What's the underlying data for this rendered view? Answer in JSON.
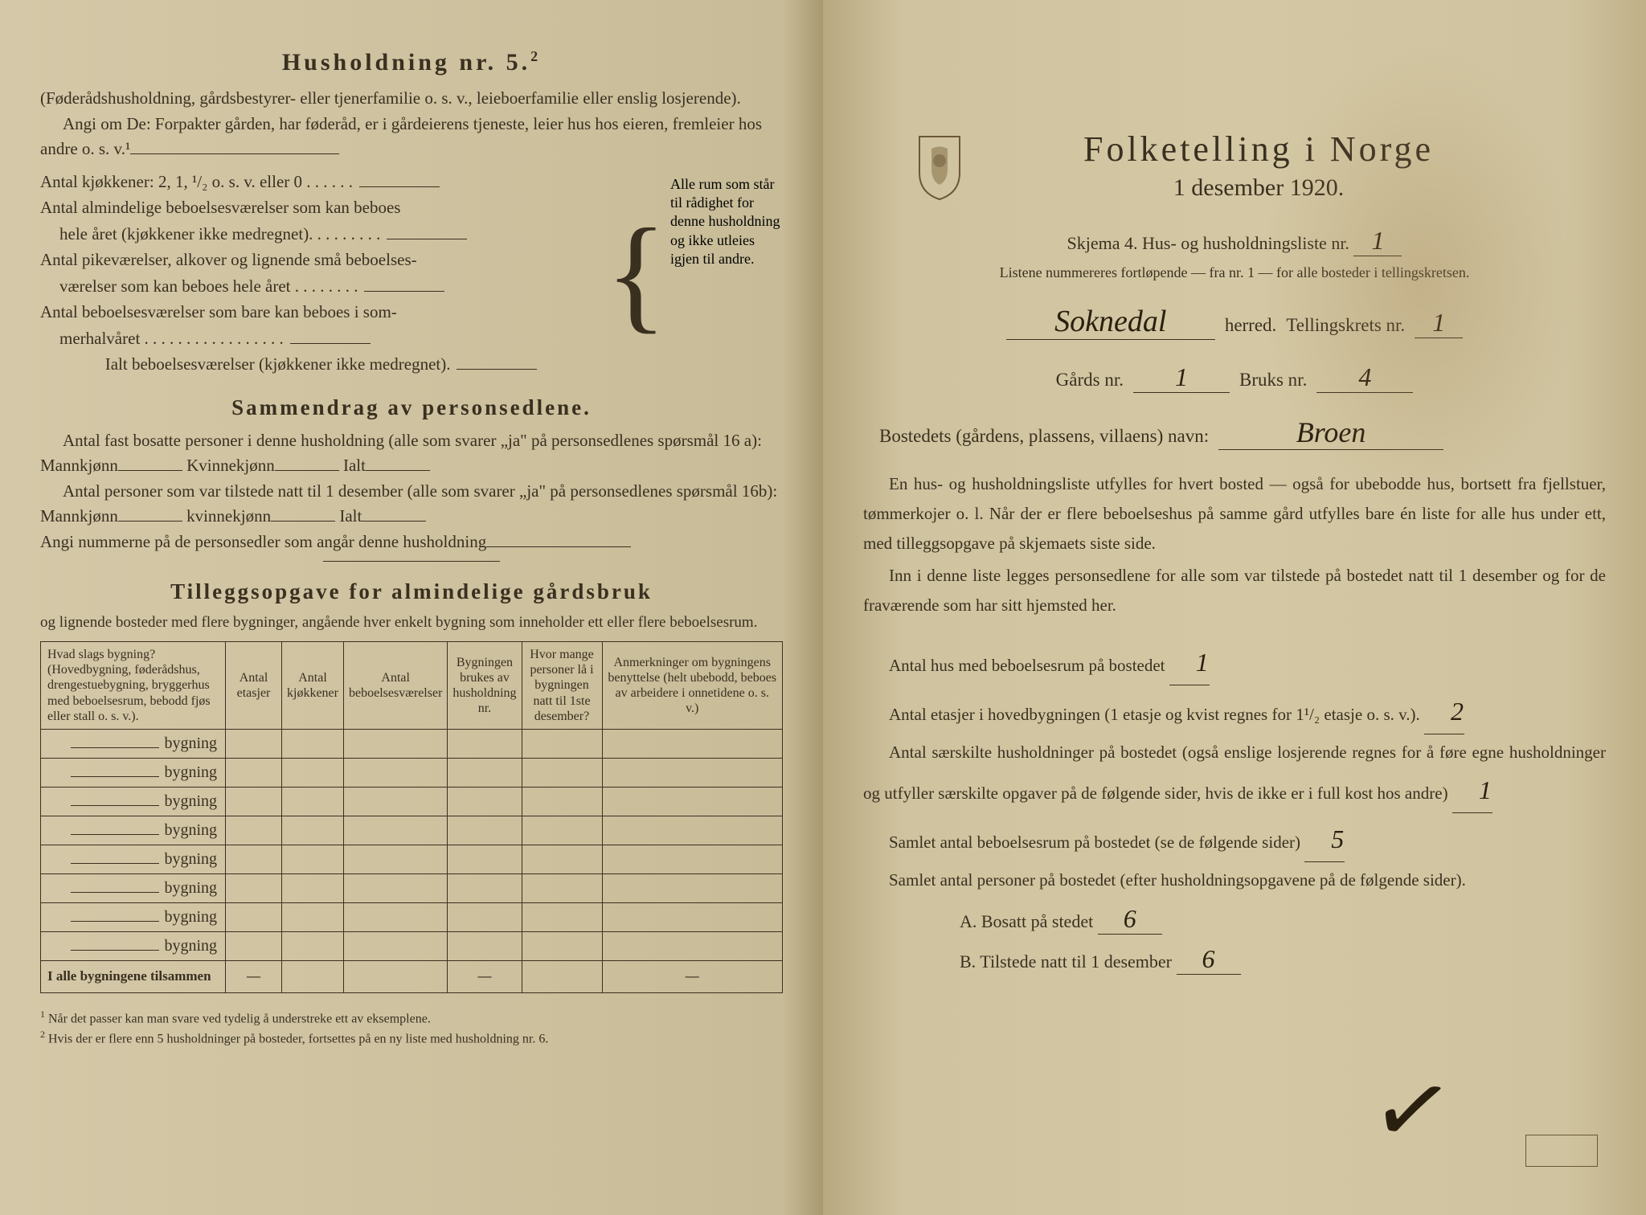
{
  "left": {
    "heading": "Husholdning nr. 5.",
    "heading_sup": "2",
    "intro1": "(Føderådshusholdning, gårdsbestyrer- eller tjenerfamilie o. s. v., leieboerfamilie eller enslig losjerende).",
    "intro2": "Angi om De: Forpakter gården, har føderåd, er i gårdeierens tjeneste, leier hus hos eieren, fremleier hos andre o. s. v.¹",
    "kj_line": "Antal kjøkkener: 2, 1, ¹/₂ o. s. v. eller 0 . . . . . .",
    "room1a": "Antal almindelige beboelsesværelser som kan beboes",
    "room1b": "hele året (kjøkkener ikke medregnet). . . . . . . . .",
    "room2a": "Antal pikeværelser, alkover og lignende små beboelses-",
    "room2b": "værelser som kan beboes hele året . . . . . . . .",
    "room3a": "Antal beboelsesværelser som bare kan beboes i som-",
    "room3b": "merhalvåret . . . . . . . . . . . . . . . . .",
    "ialt": "Ialt beboelsesværelser (kjøkkener ikke medregnet).",
    "brace_text": "Alle rum som står til rådighet for denne husholdning og ikke utleies igjen til andre.",
    "summary_head": "Sammendrag av personsedlene.",
    "sum1": "Antal fast bosatte personer i denne husholdning (alle som svarer „ja\" på personsedlenes spørsmål 16 a): Mannkjønn",
    "sum1_k": "Kvinnekjønn",
    "sum1_i": "Ialt",
    "sum2": "Antal personer som var tilstede natt til 1 desember (alle som svarer „ja\" på personsedlenes spørsmål 16b): Mannkjønn",
    "sum2_k": "kvinnekjønn",
    "sum2_i": "Ialt",
    "angi": "Angi nummerne på de personsedler som angår denne husholdning",
    "tillegg_head": "Tilleggsopgave for almindelige gårdsbruk",
    "tillegg_sub": "og lignende bosteder med flere bygninger, angående hver enkelt bygning som inneholder ett eller flere beboelsesrum.",
    "table": {
      "cols": [
        "Hvad slags bygning?\n(Hovedbygning, føderådshus, drengestuebygning, bryggerhus med beboelsesrum, bebodd fjøs eller stall o. s. v.).",
        "Antal etasjer",
        "Antal kjøkkener",
        "Antal beboelsesværelser",
        "Bygningen brukes av husholdning nr.",
        "Hvor mange personer lå i bygningen natt til 1ste desember?",
        "Anmerkninger om bygningens benyttelse (helt ubebodd, beboes av arbeidere i onnetidene o. s. v.)"
      ],
      "row_label": "bygning",
      "row_count": 8,
      "total": "I alle bygningene tilsammen"
    },
    "fn1": "Når det passer kan man svare ved tydelig å understreke ett av eksemplene.",
    "fn2": "Hvis der er flere enn 5 husholdninger på bosteder, fortsettes på en ny liste med husholdning nr. 6."
  },
  "right": {
    "title": "Folketelling i Norge",
    "date": "1 desember 1920.",
    "skjema": "Skjema 4.  Hus- og husholdningsliste nr.",
    "skjema_nr": "1",
    "listene": "Listene nummereres fortløpende — fra nr. 1 — for alle bosteder i tellingskretsen.",
    "herred_val": "Soknedal",
    "herred_lbl": "herred.",
    "tellingskrets_lbl": "Tellingskrets nr.",
    "tellingskrets_val": "1",
    "gards_lbl": "Gårds nr.",
    "gards_val": "1",
    "bruks_lbl": "Bruks nr.",
    "bruks_val": "4",
    "bosted_lbl": "Bostedets (gårdens, plassens, villaens) navn:",
    "bosted_val": "Broen",
    "para1": "En hus- og husholdningsliste utfylles for hvert bosted — også for ubebodde hus, bortsett fra fjellstuer, tømmerkojer o. l. Når der er flere beboelseshus på samme gård utfylles bare én liste for alle hus under ett, med tilleggsopgave på skjemaets siste side.",
    "para2": "Inn i denne liste legges personsedlene for alle som var tilstede på bostedet natt til 1 desember og for de fraværende som har sitt hjemsted her.",
    "q1": "Antal hus med beboelsesrum på bostedet",
    "q1_val": "1",
    "q2": "Antal etasjer i hovedbygningen (1 etasje og kvist regnes for 1¹/₂ etasje o. s. v.).",
    "q2_val": "2",
    "q3": "Antal særskilte husholdninger på bostedet (også enslige losjerende regnes for å føre egne husholdninger og utfyller særskilte opgaver på de følgende sider, hvis de ikke er i full kost hos andre)",
    "q3_val": "1",
    "q4": "Samlet antal beboelsesrum på bostedet (se de følgende sider)",
    "q4_val": "5",
    "q5": "Samlet antal personer på bostedet (efter husholdningsopgavene på de følgende sider).",
    "qA": "A.  Bosatt på stedet",
    "qA_val": "6",
    "qB": "B.  Tilstede natt til 1 desember",
    "qB_val": "6"
  },
  "colors": {
    "text": "#3a3020",
    "paper_left": "#d4c8a8",
    "paper_right": "#d4c8a4",
    "handwriting": "#2a2010"
  }
}
